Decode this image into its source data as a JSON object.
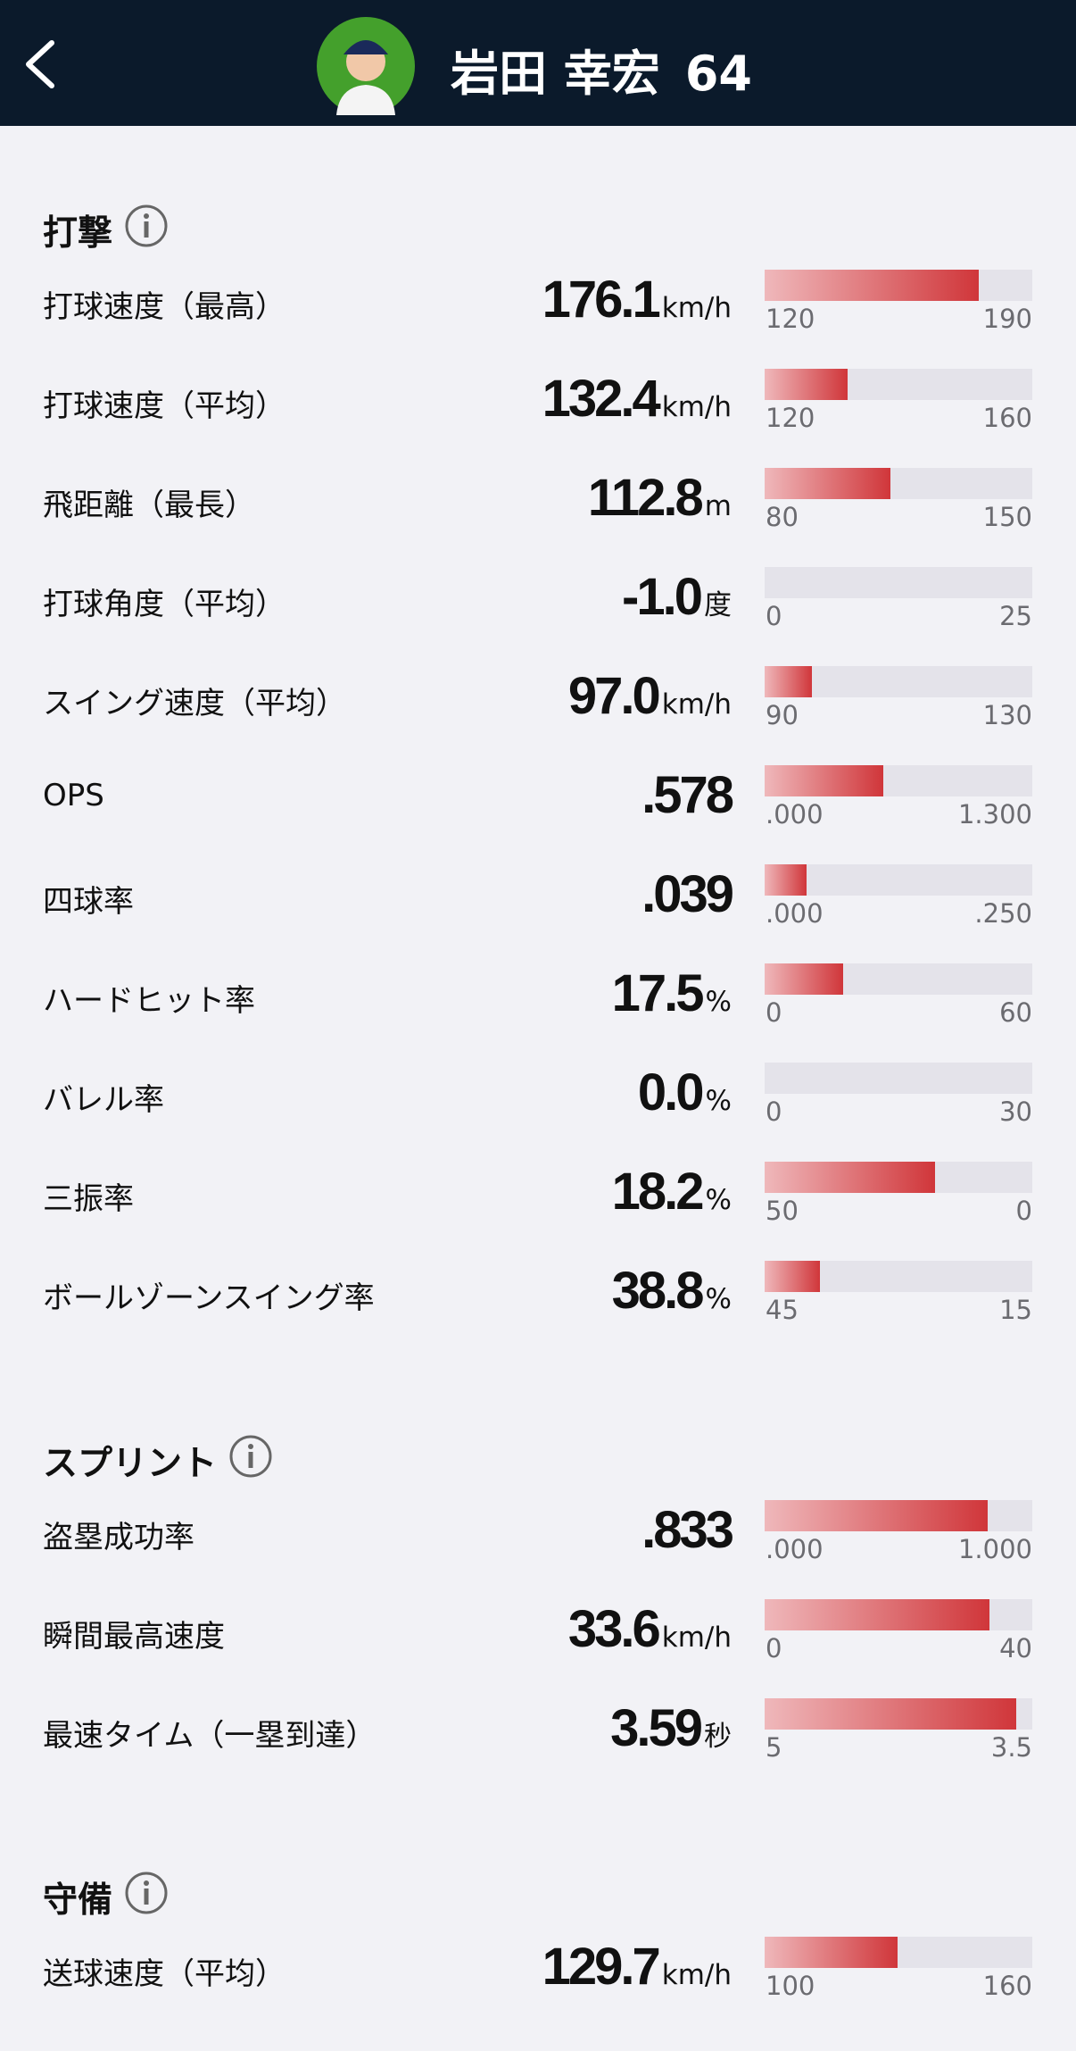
{
  "header": {
    "player_name": "岩田 幸宏",
    "uniform_number": "64"
  },
  "sections": [
    {
      "title": "打撃",
      "rows": [
        {
          "label": "打球速度（最高）",
          "value": "176.1",
          "unit": "km/h",
          "min": "120",
          "max": "190"
        },
        {
          "label": "打球速度（平均）",
          "value": "132.4",
          "unit": "km/h",
          "min": "120",
          "max": "160"
        },
        {
          "label": "飛距離（最長）",
          "value": "112.8",
          "unit": "m",
          "min": "80",
          "max": "150"
        },
        {
          "label": "打球角度（平均）",
          "value": "-1.0",
          "unit": "度",
          "min": "0",
          "max": "25"
        },
        {
          "label": "スイング速度（平均）",
          "value": "97.0",
          "unit": "km/h",
          "min": "90",
          "max": "130"
        },
        {
          "label": "OPS",
          "value": ".578",
          "min": ".000",
          "max": "1.300"
        },
        {
          "label": "四球率",
          "value": ".039",
          "min": ".000",
          "max": ".250"
        },
        {
          "label": "ハードヒット率",
          "value": "17.5",
          "unit": "%",
          "min": "0",
          "max": "60"
        },
        {
          "label": "バレル率",
          "value": "0.0",
          "unit": "%",
          "min": "0",
          "max": "30"
        },
        {
          "label": "三振率",
          "value": "18.2",
          "unit": "%",
          "min": "50",
          "max": "0"
        },
        {
          "label": "ボールゾーンスイング率",
          "value": "38.8",
          "unit": "%",
          "min": "45",
          "max": "15"
        }
      ]
    },
    {
      "title": "スプリント",
      "rows": [
        {
          "label": "盗塁成功率",
          "value": ".833",
          "min": ".000",
          "max": "1.000"
        },
        {
          "label": "瞬間最高速度",
          "value": "33.6",
          "unit": "km/h",
          "min": "0",
          "max": "40"
        },
        {
          "label": "最速タイム（一塁到達）",
          "value": "3.59",
          "unit": "秒",
          "min": "5",
          "max": "3.5"
        }
      ]
    },
    {
      "title": "守備",
      "rows": [
        {
          "label": "送球速度（平均）",
          "value": "129.7",
          "unit": "km/h",
          "min": "100",
          "max": "160"
        }
      ]
    }
  ]
}
